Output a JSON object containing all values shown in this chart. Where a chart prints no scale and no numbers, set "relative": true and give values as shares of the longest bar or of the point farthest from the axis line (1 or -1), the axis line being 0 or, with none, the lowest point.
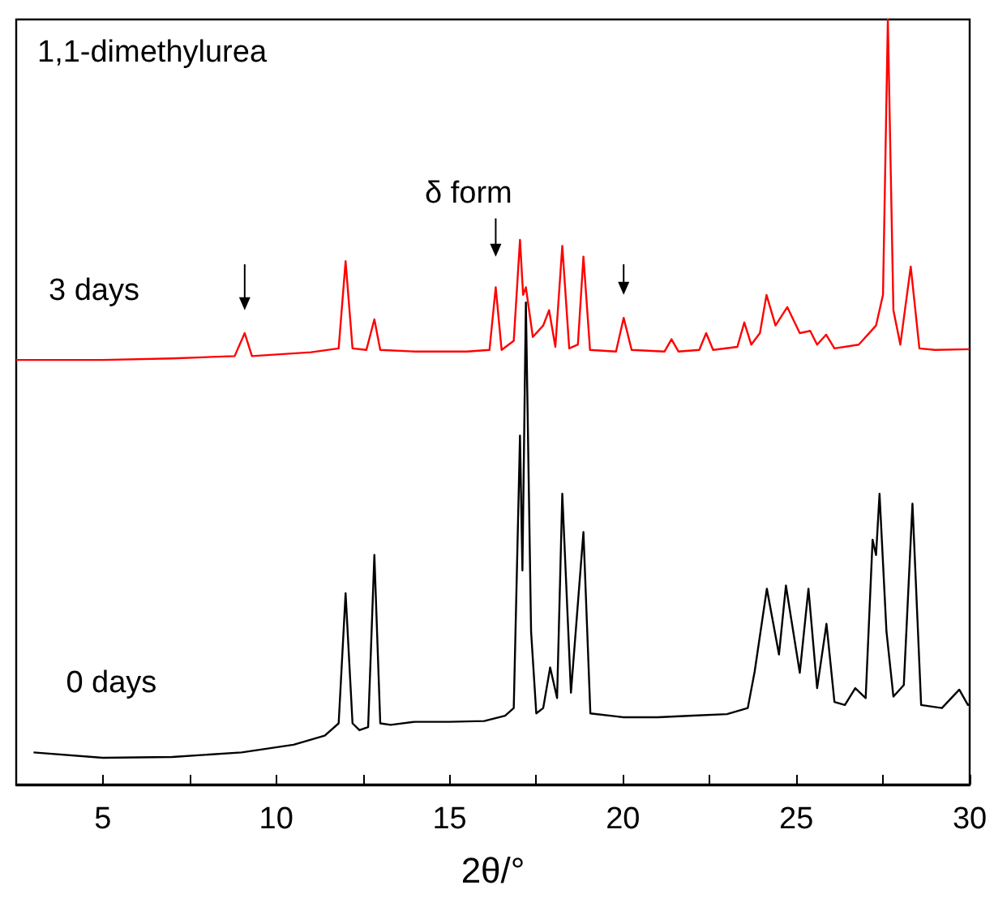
{
  "chart_data": {
    "type": "line",
    "title": "1,1-dimethylurea",
    "xlabel": "2θ/°",
    "annotations": [
      "δ form"
    ],
    "relative": true,
    "legend": false,
    "grid": false,
    "marker": "none",
    "line_style": "solid",
    "xlim": [
      2.5,
      30
    ],
    "xticks": [
      5,
      {
        "value": 7.5,
        "label": null
      },
      10,
      {
        "value": 12.5,
        "label": null
      },
      15,
      {
        "value": 17.5,
        "label": null
      },
      20,
      {
        "value": 22.5,
        "label": null
      },
      25,
      {
        "value": 27.5,
        "label": null
      },
      30
    ],
    "series": [
      {
        "name": "3 days",
        "color": "#ff0000",
        "x": [
          2.5,
          5,
          7,
          8.8,
          9.09,
          9.3,
          11,
          11.8,
          12.0,
          12.2,
          12.6,
          12.83,
          13.0,
          14,
          15.5,
          16.15,
          16.33,
          16.5,
          16.85,
          17.03,
          17.12,
          17.2,
          17.4,
          17.7,
          17.87,
          18.05,
          18.25,
          18.45,
          18.7,
          18.86,
          19.05,
          19.8,
          20.02,
          20.25,
          21.2,
          21.4,
          21.6,
          22.2,
          22.4,
          22.6,
          23.3,
          23.5,
          23.7,
          23.95,
          24.14,
          24.4,
          24.74,
          25.1,
          25.4,
          25.6,
          25.86,
          26.1,
          26.8,
          27.3,
          27.5,
          27.64,
          27.8,
          28.0,
          28.3,
          28.55,
          29,
          30
        ],
        "values": [
          0.555,
          0.555,
          0.557,
          0.56,
          0.59,
          0.56,
          0.565,
          0.57,
          0.684,
          0.57,
          0.568,
          0.608,
          0.568,
          0.566,
          0.566,
          0.568,
          0.65,
          0.568,
          0.58,
          0.712,
          0.64,
          0.65,
          0.585,
          0.6,
          0.62,
          0.572,
          0.704,
          0.57,
          0.575,
          0.69,
          0.568,
          0.566,
          0.61,
          0.568,
          0.566,
          0.582,
          0.566,
          0.568,
          0.59,
          0.568,
          0.572,
          0.604,
          0.575,
          0.59,
          0.64,
          0.6,
          0.624,
          0.59,
          0.593,
          0.575,
          0.588,
          0.57,
          0.575,
          0.6,
          0.64,
          1.0,
          0.62,
          0.575,
          0.677,
          0.57,
          0.568,
          0.569
        ]
      },
      {
        "name": "0 days",
        "color": "#000000",
        "x": [
          3,
          5,
          7,
          9,
          10.5,
          11.4,
          11.8,
          12.0,
          12.2,
          12.4,
          12.65,
          12.83,
          13.0,
          13.3,
          14,
          15,
          16,
          16.6,
          16.85,
          17.03,
          17.1,
          17.2,
          17.35,
          17.5,
          17.7,
          17.9,
          18.1,
          18.25,
          18.5,
          18.86,
          19.06,
          20,
          21,
          22,
          23,
          23.6,
          23.8,
          24.15,
          24.5,
          24.7,
          25.1,
          25.35,
          25.6,
          25.87,
          26.1,
          26.4,
          26.7,
          27.0,
          27.2,
          27.3,
          27.4,
          27.6,
          27.8,
          28.1,
          28.35,
          28.6,
          29.2,
          29.7,
          29.95,
          30
        ],
        "values": [
          0.042,
          0.035,
          0.036,
          0.042,
          0.052,
          0.064,
          0.08,
          0.25,
          0.08,
          0.071,
          0.075,
          0.3,
          0.08,
          0.078,
          0.082,
          0.082,
          0.083,
          0.09,
          0.1,
          0.456,
          0.28,
          0.63,
          0.2,
          0.093,
          0.1,
          0.153,
          0.113,
          0.38,
          0.12,
          0.33,
          0.093,
          0.088,
          0.088,
          0.09,
          0.092,
          0.1,
          0.148,
          0.256,
          0.17,
          0.26,
          0.146,
          0.256,
          0.126,
          0.21,
          0.108,
          0.104,
          0.126,
          0.113,
          0.32,
          0.3,
          0.38,
          0.2,
          0.115,
          0.13,
          0.367,
          0.104,
          0.1,
          0.124,
          0.104,
          0.105
        ]
      }
    ]
  }
}
